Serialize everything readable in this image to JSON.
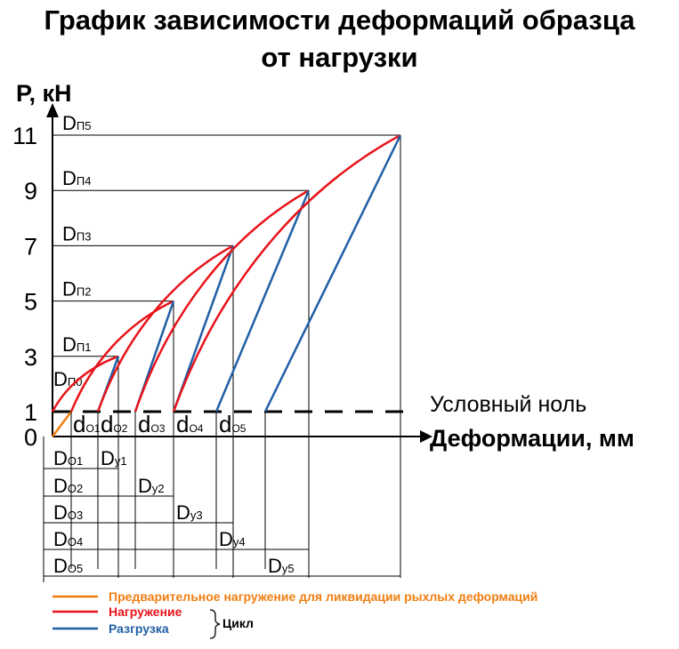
{
  "title_line1": "График зависимости деформаций образца",
  "title_line2": "от нагрузки",
  "colors": {
    "preload": "#F07E11",
    "loading": "#E8141B",
    "unloading": "#1F5FA6",
    "axis": "#000000"
  },
  "annotations": {
    "conditional_zero": "Условный ноль",
    "bracket_label": "Цикл"
  },
  "legend": [
    {
      "text": "Предварительное нагружение для ликвидации рыхлых деформаций",
      "color": "#F07E11"
    },
    {
      "text": "Нагружение",
      "color": "#E8141B"
    },
    {
      "text": "Разгрузка",
      "color": "#1F5FA6"
    }
  ],
  "chart_data": {
    "type": "line",
    "ylabel": "P, кН",
    "xlabel": "Деформации, мм",
    "y_ticks": [
      0,
      1,
      3,
      5,
      7,
      9,
      11
    ],
    "conditional_zero_load": 1,
    "preload": {
      "start": 0,
      "end_load": 1
    },
    "cycles": [
      {
        "peak_load": 3,
        "peak_label": [
          "D",
          "П1"
        ],
        "residual_label": [
          "d",
          "O1"
        ],
        "total_label": [
          "D",
          "O1"
        ],
        "elastic_label": [
          "D",
          "у1"
        ]
      },
      {
        "peak_load": 5,
        "peak_label": [
          "D",
          "П2"
        ],
        "residual_label": [
          "d",
          "O2"
        ],
        "total_label": [
          "D",
          "O2"
        ],
        "elastic_label": [
          "D",
          "у2"
        ]
      },
      {
        "peak_load": 7,
        "peak_label": [
          "D",
          "П3"
        ],
        "residual_label": [
          "d",
          "O3"
        ],
        "total_label": [
          "D",
          "O3"
        ],
        "elastic_label": [
          "D",
          "у3"
        ]
      },
      {
        "peak_load": 9,
        "peak_label": [
          "D",
          "П4"
        ],
        "residual_label": [
          "d",
          "O4"
        ],
        "total_label": [
          "D",
          "O4"
        ],
        "elastic_label": [
          "D",
          "у4"
        ]
      },
      {
        "peak_load": 11,
        "peak_label": [
          "D",
          "П5"
        ],
        "residual_label": [
          "d",
          "O5"
        ],
        "total_label": [
          "D",
          "O5"
        ],
        "elastic_label": [
          "D",
          "у5"
        ]
      }
    ],
    "preload_label": [
      "D",
      "П0"
    ]
  }
}
